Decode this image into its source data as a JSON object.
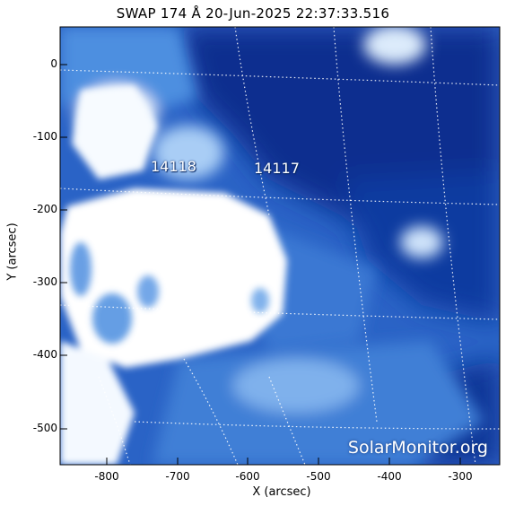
{
  "title": "SWAP 174 Å 20-Jun-2025 22:37:33.516",
  "axes": {
    "xlabel": "X (arcsec)",
    "ylabel": "Y (arcsec)",
    "xticks": [
      "-800",
      "-700",
      "-600",
      "-500",
      "-400",
      "-300"
    ],
    "yticks": [
      "0",
      "-100",
      "-200",
      "-300",
      "-400",
      "-500"
    ]
  },
  "regions": {
    "r1": "14118",
    "r2": "14117"
  },
  "watermark": "SolarMonitor.org",
  "colors": {
    "dark": "#0b2f8f",
    "mid": "#3d7fd8",
    "light": "#a9cdf5",
    "white": "#ffffff",
    "grid": "#ffffff"
  }
}
